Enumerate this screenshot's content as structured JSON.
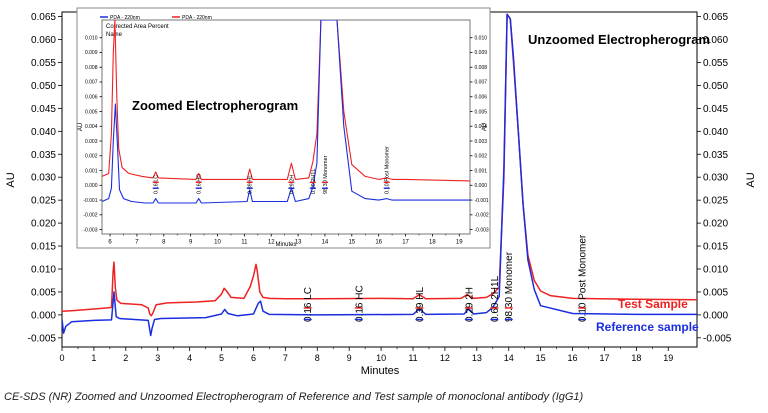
{
  "chart_data": [
    {
      "type": "line",
      "title": "Unzoomed Electropherogram",
      "xlabel": "Minutes",
      "ylabel_left": "AU",
      "ylabel_right": "AU",
      "xlim": [
        0,
        19.9
      ],
      "ylim": [
        -0.007,
        0.066
      ],
      "x_ticks": [
        "0",
        "1",
        "2",
        "3",
        "4",
        "5",
        "6",
        "7",
        "8",
        "9",
        "10",
        "11",
        "12",
        "13",
        "14",
        "15",
        "16",
        "17",
        "18",
        "19"
      ],
      "y_ticks": [
        "-0.005",
        "0.000",
        "0.005",
        "0.010",
        "0.015",
        "0.020",
        "0.025",
        "0.030",
        "0.035",
        "0.040",
        "0.045",
        "0.050",
        "0.055",
        "0.060",
        "0.065"
      ],
      "grid": false,
      "series": [
        {
          "name": "Test Sample",
          "color": "#ee2222",
          "offset": 0.0015,
          "x": [
            0,
            0.3,
            0.7,
            1.2,
            1.55,
            1.6,
            1.63,
            1.67,
            1.72,
            1.85,
            2.5,
            2.7,
            2.75,
            2.8,
            2.85,
            2.95,
            3.3,
            4.2,
            4.8,
            5.0,
            5.08,
            5.18,
            5.3,
            5.7,
            5.9,
            6.0,
            6.08,
            6.12,
            6.2,
            6.3,
            6.5,
            7.0,
            8.0,
            10.0,
            11.0,
            11.2,
            11.4,
            12.5,
            12.7,
            12.9,
            13.3,
            13.5,
            13.7,
            13.85,
            13.95,
            14.05,
            14.15,
            14.3,
            14.45,
            14.6,
            14.8,
            15.0,
            15.3,
            16.0,
            18.0,
            19.9
          ],
          "y": [
            0.0008,
            0.0009,
            0.0011,
            0.0014,
            0.0016,
            0.0095,
            0.0115,
            0.006,
            0.0032,
            0.0025,
            0.0022,
            0.0015,
            0.0002,
            -0.0002,
            0.0004,
            0.0022,
            0.0026,
            0.0028,
            0.0031,
            0.0045,
            0.0058,
            0.005,
            0.0038,
            0.0036,
            0.0062,
            0.0085,
            0.011,
            0.0095,
            0.005,
            0.0038,
            0.0036,
            0.0035,
            0.0035,
            0.0036,
            0.0035,
            0.0044,
            0.0035,
            0.0036,
            0.0044,
            0.0036,
            0.0038,
            0.0046,
            0.006,
            0.03,
            0.0655,
            0.0645,
            0.055,
            0.04,
            0.024,
            0.013,
            0.0075,
            0.0052,
            0.0042,
            0.0036,
            0.0034,
            0.0033
          ]
        },
        {
          "name": "Reference sample",
          "color": "#1a2ee0",
          "offset": -0.001,
          "x": [
            0,
            0.05,
            0.12,
            0.3,
            1.0,
            1.55,
            1.63,
            1.66,
            1.7,
            1.8,
            2.7,
            2.78,
            2.82,
            2.9,
            3.1,
            4.5,
            5.0,
            5.1,
            5.2,
            5.5,
            6.0,
            6.15,
            6.22,
            6.3,
            6.5,
            8.0,
            11.0,
            11.2,
            11.4,
            12.6,
            12.75,
            12.9,
            13.3,
            13.5,
            13.7,
            13.85,
            13.95,
            14.05,
            14.15,
            14.3,
            14.45,
            14.6,
            14.8,
            15.0,
            16.0,
            18.0,
            19.9
          ],
          "y": [
            -0.001,
            -0.004,
            -0.0025,
            -0.0015,
            -0.0012,
            -0.0011,
            0.005,
            0.0025,
            -0.0004,
            -0.0008,
            -0.0012,
            -0.0045,
            -0.003,
            -0.001,
            -0.0008,
            -0.0006,
            0.0002,
            0.0012,
            0.0003,
            -0.0002,
            0.0002,
            0.0025,
            0.003,
            0.0008,
            0.0001,
            0.0,
            0.0001,
            0.0013,
            0.0001,
            0.0002,
            0.0013,
            0.0002,
            0.0005,
            0.0016,
            0.004,
            0.032,
            0.0655,
            0.0645,
            0.056,
            0.04,
            0.024,
            0.012,
            0.0055,
            0.002,
            0.0003,
            0.0001,
            0.0001
          ]
        }
      ],
      "series_labels": [
        "Test Sample",
        "Reference sample"
      ],
      "peak_labels": [
        {
          "text": "0.16  LC",
          "x": 7.7
        },
        {
          "text": "0.16  HC",
          "x": 9.3
        },
        {
          "text": "0.39  HL",
          "x": 11.2
        },
        {
          "text": "0.29  2H",
          "x": 12.75
        },
        {
          "text": "0.60  2H1L",
          "x": 13.55
        },
        {
          "text": "98.30  Monomer",
          "x": 14.0
        },
        {
          "text": "0.10  Post Monomer",
          "x": 16.3
        }
      ]
    },
    {
      "type": "line",
      "title": "Zoomed Electropherogram",
      "xlabel": "Minutes",
      "ylabel": "AU",
      "xlim": [
        5.7,
        19.4
      ],
      "ylim": [
        -0.0033,
        0.0112
      ],
      "x_ticks": [
        "6",
        "7",
        "8",
        "9",
        "10",
        "11",
        "12",
        "13",
        "14",
        "15",
        "16",
        "17",
        "18",
        "19"
      ],
      "y_ticks": [
        "-0.003",
        "-0.002",
        "-0.001",
        "0.000",
        "0.001",
        "0.002",
        "0.003",
        "0.004",
        "0.005",
        "0.006",
        "0.007",
        "0.008",
        "0.009",
        "0.010"
      ],
      "legend": [
        "PDA - 220nm",
        "PDA - 220nm"
      ],
      "header_lines": [
        "Corrected Area Percent",
        "Name"
      ],
      "series": [
        {
          "name": "PDA - 220nm",
          "color": "#ee2222",
          "offset": 0.0002,
          "x": [
            5.7,
            5.95,
            6.05,
            6.12,
            6.18,
            6.25,
            6.32,
            6.45,
            6.7,
            7.2,
            7.6,
            7.7,
            7.8,
            9.2,
            9.3,
            9.4,
            11.1,
            11.2,
            11.3,
            12.6,
            12.75,
            12.9,
            13.4,
            13.55,
            13.7,
            13.85,
            13.95,
            14.05,
            14.15,
            14.3,
            14.45,
            14.7,
            15.0,
            15.5,
            16.0,
            16.3,
            16.5,
            17.0,
            19.4
          ],
          "y": [
            0.0006,
            0.0008,
            0.0035,
            0.009,
            0.0112,
            0.006,
            0.0025,
            0.0012,
            0.0008,
            0.0006,
            0.0005,
            0.0009,
            0.0005,
            0.0004,
            0.0008,
            0.0004,
            0.0004,
            0.0011,
            0.0004,
            0.0004,
            0.0015,
            0.0004,
            0.0005,
            0.0016,
            0.0035,
            0.0112,
            0.0112,
            0.0112,
            0.0112,
            0.0112,
            0.0112,
            0.005,
            0.0014,
            0.0006,
            0.0004,
            0.0005,
            0.0004,
            0.0004,
            0.0003
          ]
        },
        {
          "name": "PDA - 220nm",
          "color": "#1a2ee0",
          "offset": -0.0002,
          "x": [
            5.7,
            5.95,
            6.05,
            6.12,
            6.2,
            6.28,
            6.35,
            6.5,
            6.8,
            7.3,
            7.6,
            7.7,
            7.8,
            9.2,
            9.3,
            9.4,
            11.1,
            11.2,
            11.3,
            12.6,
            12.75,
            12.9,
            13.4,
            13.55,
            13.7,
            13.85,
            13.95,
            14.05,
            14.15,
            14.3,
            14.45,
            14.7,
            15.0,
            15.5,
            16.0,
            16.3,
            16.5,
            17.0,
            19.4
          ],
          "y": [
            -0.0011,
            -0.0009,
            -0.0002,
            0.003,
            0.0055,
            0.0025,
            -0.0003,
            -0.0009,
            -0.0011,
            -0.0012,
            -0.0012,
            -0.0009,
            -0.0012,
            -0.0012,
            -0.0009,
            -0.0012,
            -0.0011,
            -0.0003,
            -0.0011,
            -0.0011,
            -0.0002,
            -0.0011,
            -0.0009,
            -0.0001,
            0.0015,
            0.0112,
            0.0112,
            0.0112,
            0.0112,
            0.0112,
            0.0112,
            0.004,
            -0.0004,
            -0.0009,
            -0.001,
            -0.0009,
            -0.001,
            -0.001,
            -0.001
          ]
        }
      ],
      "peak_labels": [
        {
          "text": "0.16  LC",
          "x": 7.7
        },
        {
          "text": "0.16  HC",
          "x": 9.3
        },
        {
          "text": "0.39  HL",
          "x": 11.2
        },
        {
          "text": "0.29  2H",
          "x": 12.75
        },
        {
          "text": "0.60  2H1L",
          "x": 13.55
        },
        {
          "text": "98.30  Monomer",
          "x": 14.0
        },
        {
          "text": "0.10  Post Monomer",
          "x": 16.3
        }
      ]
    }
  ],
  "caption": "CE-SDS (NR) Zoomed and Unzoomed Electropherogram of Reference and Test sample of monoclonal antibody (IgG1)"
}
